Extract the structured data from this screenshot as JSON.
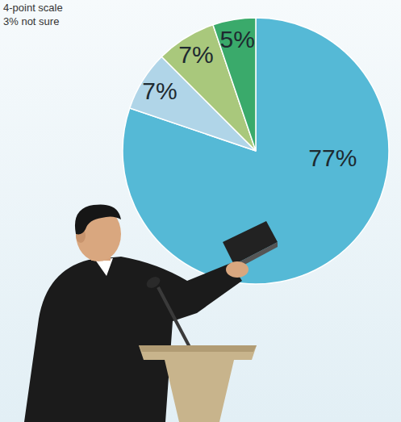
{
  "chart_data": {
    "type": "pie",
    "subtitle": "4-point scale",
    "annotations": [
      "3% not sure"
    ],
    "categories": [
      null,
      null,
      null,
      null
    ],
    "values": [
      77,
      7,
      7,
      5
    ],
    "value_labels": [
      "77%",
      "7%",
      "7%",
      "5%"
    ],
    "colors": [
      "#55b9d6",
      "#b0d5e8",
      "#a9c87c",
      "#3aaa6b"
    ],
    "data_labels": true
  }
}
